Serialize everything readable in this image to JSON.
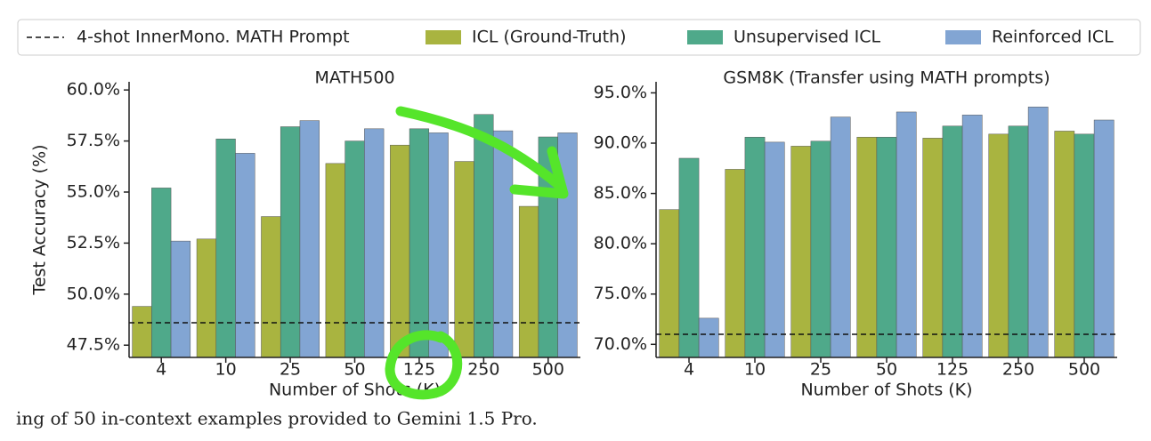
{
  "chart_data": [
    {
      "type": "bar",
      "title": "MATH500",
      "xlabel": "Number of Shots (K)",
      "ylabel": "Test Accuracy (%)",
      "categories": [
        "4",
        "10",
        "25",
        "50",
        "125",
        "250",
        "500"
      ],
      "series": [
        {
          "name": "ICL (Ground-Truth)",
          "color": "#a9b440",
          "values": [
            49.4,
            52.7,
            53.8,
            56.4,
            57.3,
            56.5,
            54.3
          ]
        },
        {
          "name": "Unsupervised ICL",
          "color": "#4fa98a",
          "values": [
            55.2,
            57.6,
            58.2,
            57.5,
            58.1,
            58.8,
            57.7
          ]
        },
        {
          "name": "Reinforced ICL",
          "color": "#82a5d3",
          "values": [
            52.6,
            56.9,
            58.5,
            58.1,
            57.9,
            58.0,
            57.9
          ]
        }
      ],
      "baseline": {
        "name": "4-shot InnerMono. MATH Prompt",
        "value": 48.6
      },
      "ylim": [
        46.9,
        60.4
      ],
      "yticks": [
        {
          "value": 47.5,
          "label": "47.5%"
        },
        {
          "value": 50,
          "label": "50.0%"
        },
        {
          "value": 52.5,
          "label": "52.5%"
        },
        {
          "value": 55,
          "label": "55.0%"
        },
        {
          "value": 57.5,
          "label": "57.5%"
        },
        {
          "value": 60,
          "label": "60.0%"
        }
      ]
    },
    {
      "type": "bar",
      "title": "GSM8K (Transfer using MATH prompts)",
      "xlabel": "Number of Shots (K)",
      "categories": [
        "4",
        "10",
        "25",
        "50",
        "125",
        "250",
        "500"
      ],
      "series": [
        {
          "name": "ICL (Ground-Truth)",
          "color": "#a9b440",
          "values": [
            83.4,
            87.4,
            89.7,
            90.6,
            90.5,
            90.9,
            91.2
          ]
        },
        {
          "name": "Unsupervised ICL",
          "color": "#4fa98a",
          "values": [
            88.5,
            90.6,
            90.2,
            90.6,
            91.7,
            91.7,
            90.9
          ]
        },
        {
          "name": "Reinforced ICL",
          "color": "#82a5d3",
          "values": [
            72.6,
            90.1,
            92.6,
            93.1,
            92.8,
            93.6,
            92.3
          ]
        }
      ],
      "baseline": {
        "value": 71.0
      },
      "ylim": [
        68.7,
        96.1
      ],
      "yticks": [
        {
          "value": 70,
          "label": "70.0%"
        },
        {
          "value": 75,
          "label": "75.0%"
        },
        {
          "value": 80,
          "label": "80.0%"
        },
        {
          "value": 85,
          "label": "85.0%"
        },
        {
          "value": 90,
          "label": "90.0%"
        },
        {
          "value": 95,
          "label": "95.0%"
        }
      ]
    }
  ],
  "caption": "ing of 50 in-context examples provided to Gemini 1.5 Pro."
}
